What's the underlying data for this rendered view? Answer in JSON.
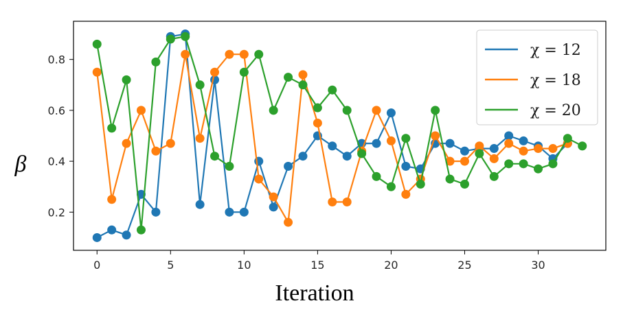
{
  "chart_data": {
    "type": "line",
    "xlabel": "Iteration",
    "ylabel": "β",
    "xlim": [
      -1.6,
      34.6
    ],
    "ylim": [
      0.05,
      0.95
    ],
    "xticks": [
      0,
      5,
      10,
      15,
      20,
      25,
      30
    ],
    "yticks": [
      0.2,
      0.4,
      0.6,
      0.8
    ],
    "grid": false,
    "legend_position": "top-right",
    "markers": "circle",
    "series": [
      {
        "name": "χ = 12",
        "color": "#1f77b4",
        "x": [
          0,
          1,
          2,
          3,
          4,
          5,
          6,
          7,
          8,
          9,
          10,
          11,
          12,
          13,
          14,
          15,
          16,
          17,
          18,
          19,
          20,
          21,
          22,
          23,
          24,
          25,
          26,
          27,
          28,
          29,
          30,
          31,
          32
        ],
        "y": [
          0.1,
          0.13,
          0.11,
          0.27,
          0.2,
          0.89,
          0.9,
          0.23,
          0.72,
          0.2,
          0.2,
          0.4,
          0.22,
          0.38,
          0.42,
          0.5,
          0.46,
          0.42,
          0.47,
          0.47,
          0.59,
          0.38,
          0.37,
          0.47,
          0.47,
          0.44,
          0.45,
          0.45,
          0.5,
          0.48,
          0.46,
          0.41,
          0.47
        ]
      },
      {
        "name": "χ = 18",
        "color": "#ff7f0e",
        "x": [
          0,
          1,
          2,
          3,
          4,
          5,
          6,
          7,
          8,
          9,
          10,
          11,
          12,
          13,
          14,
          15,
          16,
          17,
          18,
          19,
          20,
          21,
          22,
          23,
          24,
          25,
          26,
          27,
          28,
          29,
          30,
          31,
          32
        ],
        "y": [
          0.75,
          0.25,
          0.47,
          0.6,
          0.44,
          0.47,
          0.82,
          0.49,
          0.75,
          0.82,
          0.82,
          0.33,
          0.26,
          0.16,
          0.74,
          0.55,
          0.24,
          0.24,
          0.44,
          0.6,
          0.48,
          0.27,
          0.33,
          0.5,
          0.4,
          0.4,
          0.46,
          0.41,
          0.47,
          0.44,
          0.45,
          0.45,
          0.47
        ]
      },
      {
        "name": "χ = 20",
        "color": "#2ca02c",
        "x": [
          0,
          1,
          2,
          3,
          4,
          5,
          6,
          7,
          8,
          9,
          10,
          11,
          12,
          13,
          14,
          15,
          16,
          17,
          18,
          19,
          20,
          21,
          22,
          23,
          24,
          25,
          26,
          27,
          28,
          29,
          30,
          31,
          32,
          33
        ],
        "y": [
          0.86,
          0.53,
          0.72,
          0.13,
          0.79,
          0.88,
          0.89,
          0.7,
          0.42,
          0.38,
          0.75,
          0.82,
          0.6,
          0.73,
          0.7,
          0.61,
          0.68,
          0.6,
          0.43,
          0.34,
          0.3,
          0.49,
          0.31,
          0.6,
          0.33,
          0.31,
          0.43,
          0.34,
          0.39,
          0.39,
          0.37,
          0.39,
          0.49,
          0.46
        ]
      }
    ]
  }
}
